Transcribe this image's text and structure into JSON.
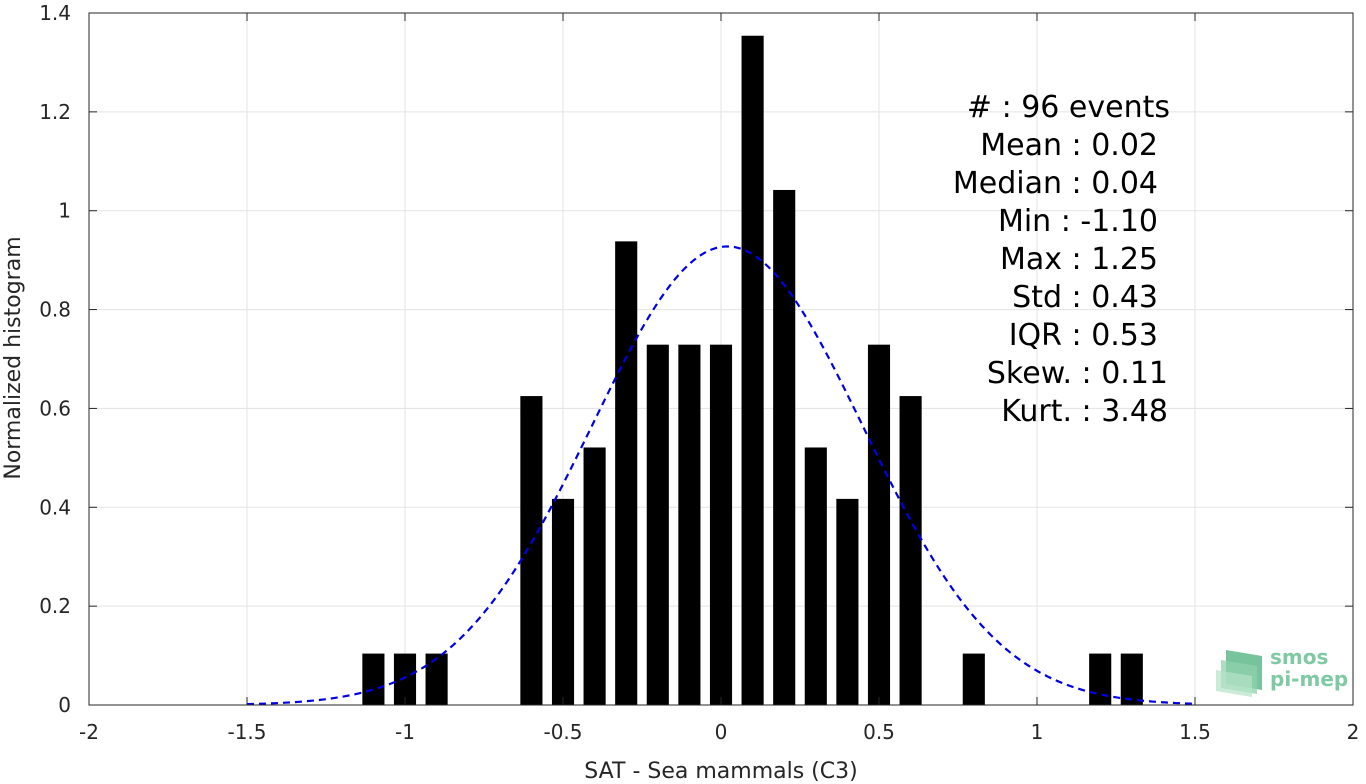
{
  "chart_data": {
    "type": "bar",
    "xlabel": "SAT - Sea mammals (C3)",
    "ylabel": "Normalized histogram",
    "xlim": [
      -2,
      2
    ],
    "ylim": [
      0,
      1.4
    ],
    "xticks": [
      -2,
      -1.5,
      -1,
      -0.5,
      0,
      0.5,
      1,
      1.5,
      2
    ],
    "xtick_labels": [
      "-2",
      "-1.5",
      "-1",
      "-0.5",
      "0",
      "0.5",
      "1",
      "1.5",
      "2"
    ],
    "yticks": [
      0,
      0.2,
      0.4,
      0.6,
      0.8,
      1,
      1.2,
      1.4
    ],
    "ytick_labels": [
      "0",
      "0.2",
      "0.4",
      "0.6",
      "0.8",
      "1",
      "1.2",
      "1.4"
    ],
    "grid": true,
    "bar_width": 0.07,
    "bars": [
      {
        "x": -1.1,
        "y": 0.104
      },
      {
        "x": -1.0,
        "y": 0.104
      },
      {
        "x": -0.9,
        "y": 0.104
      },
      {
        "x": -0.6,
        "y": 0.625
      },
      {
        "x": -0.5,
        "y": 0.417
      },
      {
        "x": -0.4,
        "y": 0.521
      },
      {
        "x": -0.3,
        "y": 0.938
      },
      {
        "x": -0.2,
        "y": 0.729
      },
      {
        "x": -0.1,
        "y": 0.729
      },
      {
        "x": 0.0,
        "y": 0.729
      },
      {
        "x": 0.1,
        "y": 1.354
      },
      {
        "x": 0.2,
        "y": 1.042
      },
      {
        "x": 0.3,
        "y": 0.521
      },
      {
        "x": 0.4,
        "y": 0.417
      },
      {
        "x": 0.5,
        "y": 0.729
      },
      {
        "x": 0.6,
        "y": 0.625
      },
      {
        "x": 0.8,
        "y": 0.104
      },
      {
        "x": 1.2,
        "y": 0.104
      },
      {
        "x": 1.3,
        "y": 0.104
      }
    ],
    "fit_curve": {
      "type": "gaussian",
      "mean": 0.02,
      "std": 0.43,
      "x_range": [
        -1.5,
        1.5
      ],
      "style": "dashed",
      "color": "#0000e6"
    },
    "bar_color": "#000000",
    "stats": [
      {
        "label": "#  : 96 events",
        "key": "count"
      },
      {
        "label": "Mean : 0.02",
        "key": "mean"
      },
      {
        "label": "Median : 0.04",
        "key": "median"
      },
      {
        "label": "Min : -1.10",
        "key": "min"
      },
      {
        "label": "Max : 1.25",
        "key": "max"
      },
      {
        "label": "Std : 0.43",
        "key": "std"
      },
      {
        "label": "IQR : 0.53",
        "key": "iqr"
      },
      {
        "label": "Skew. : 0.11",
        "key": "skew"
      },
      {
        "label": "Kurt. : 3.48",
        "key": "kurt"
      }
    ]
  },
  "logo": {
    "line1": "smos",
    "line2": "pi-mep",
    "color": "#7fc9a3"
  }
}
